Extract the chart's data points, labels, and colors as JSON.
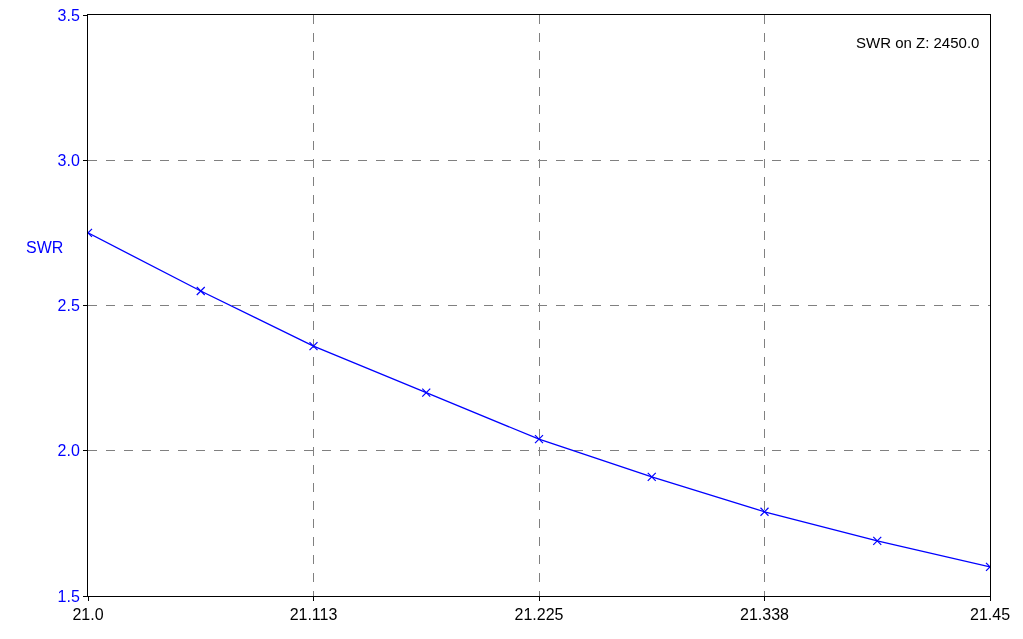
{
  "chart_data": {
    "type": "line",
    "ylabel": "SWR",
    "annotations": [
      "SWR on Z: 2450.0"
    ],
    "x": [
      21.0,
      21.05625,
      21.1125,
      21.16875,
      21.225,
      21.28125,
      21.3375,
      21.39375,
      21.45
    ],
    "series": [
      {
        "color": "#0000ff",
        "values": [
          2.75,
          2.55,
          2.36,
          2.2,
          2.04,
          1.91,
          1.79,
          1.69,
          1.6
        ]
      }
    ],
    "xlim": [
      21.0,
      21.45
    ],
    "xticks": [
      {
        "value": 21.0,
        "label": "21.0"
      },
      {
        "value": 21.1125,
        "label": "21.113"
      },
      {
        "value": 21.225,
        "label": "21.225"
      },
      {
        "value": 21.3375,
        "label": "21.338"
      },
      21.45
    ],
    "ylim": [
      1.5,
      3.5
    ],
    "yticks": [
      {
        "value": 1.5,
        "label": "1.5"
      },
      {
        "value": 2.0,
        "label": "2.0"
      },
      {
        "value": 2.5,
        "label": "2.5"
      },
      {
        "value": 3.0,
        "label": "3.0"
      },
      {
        "value": 3.5,
        "label": "3.5"
      }
    ],
    "grid": true,
    "marker": "cross",
    "line_style": "solid",
    "legend": false
  }
}
